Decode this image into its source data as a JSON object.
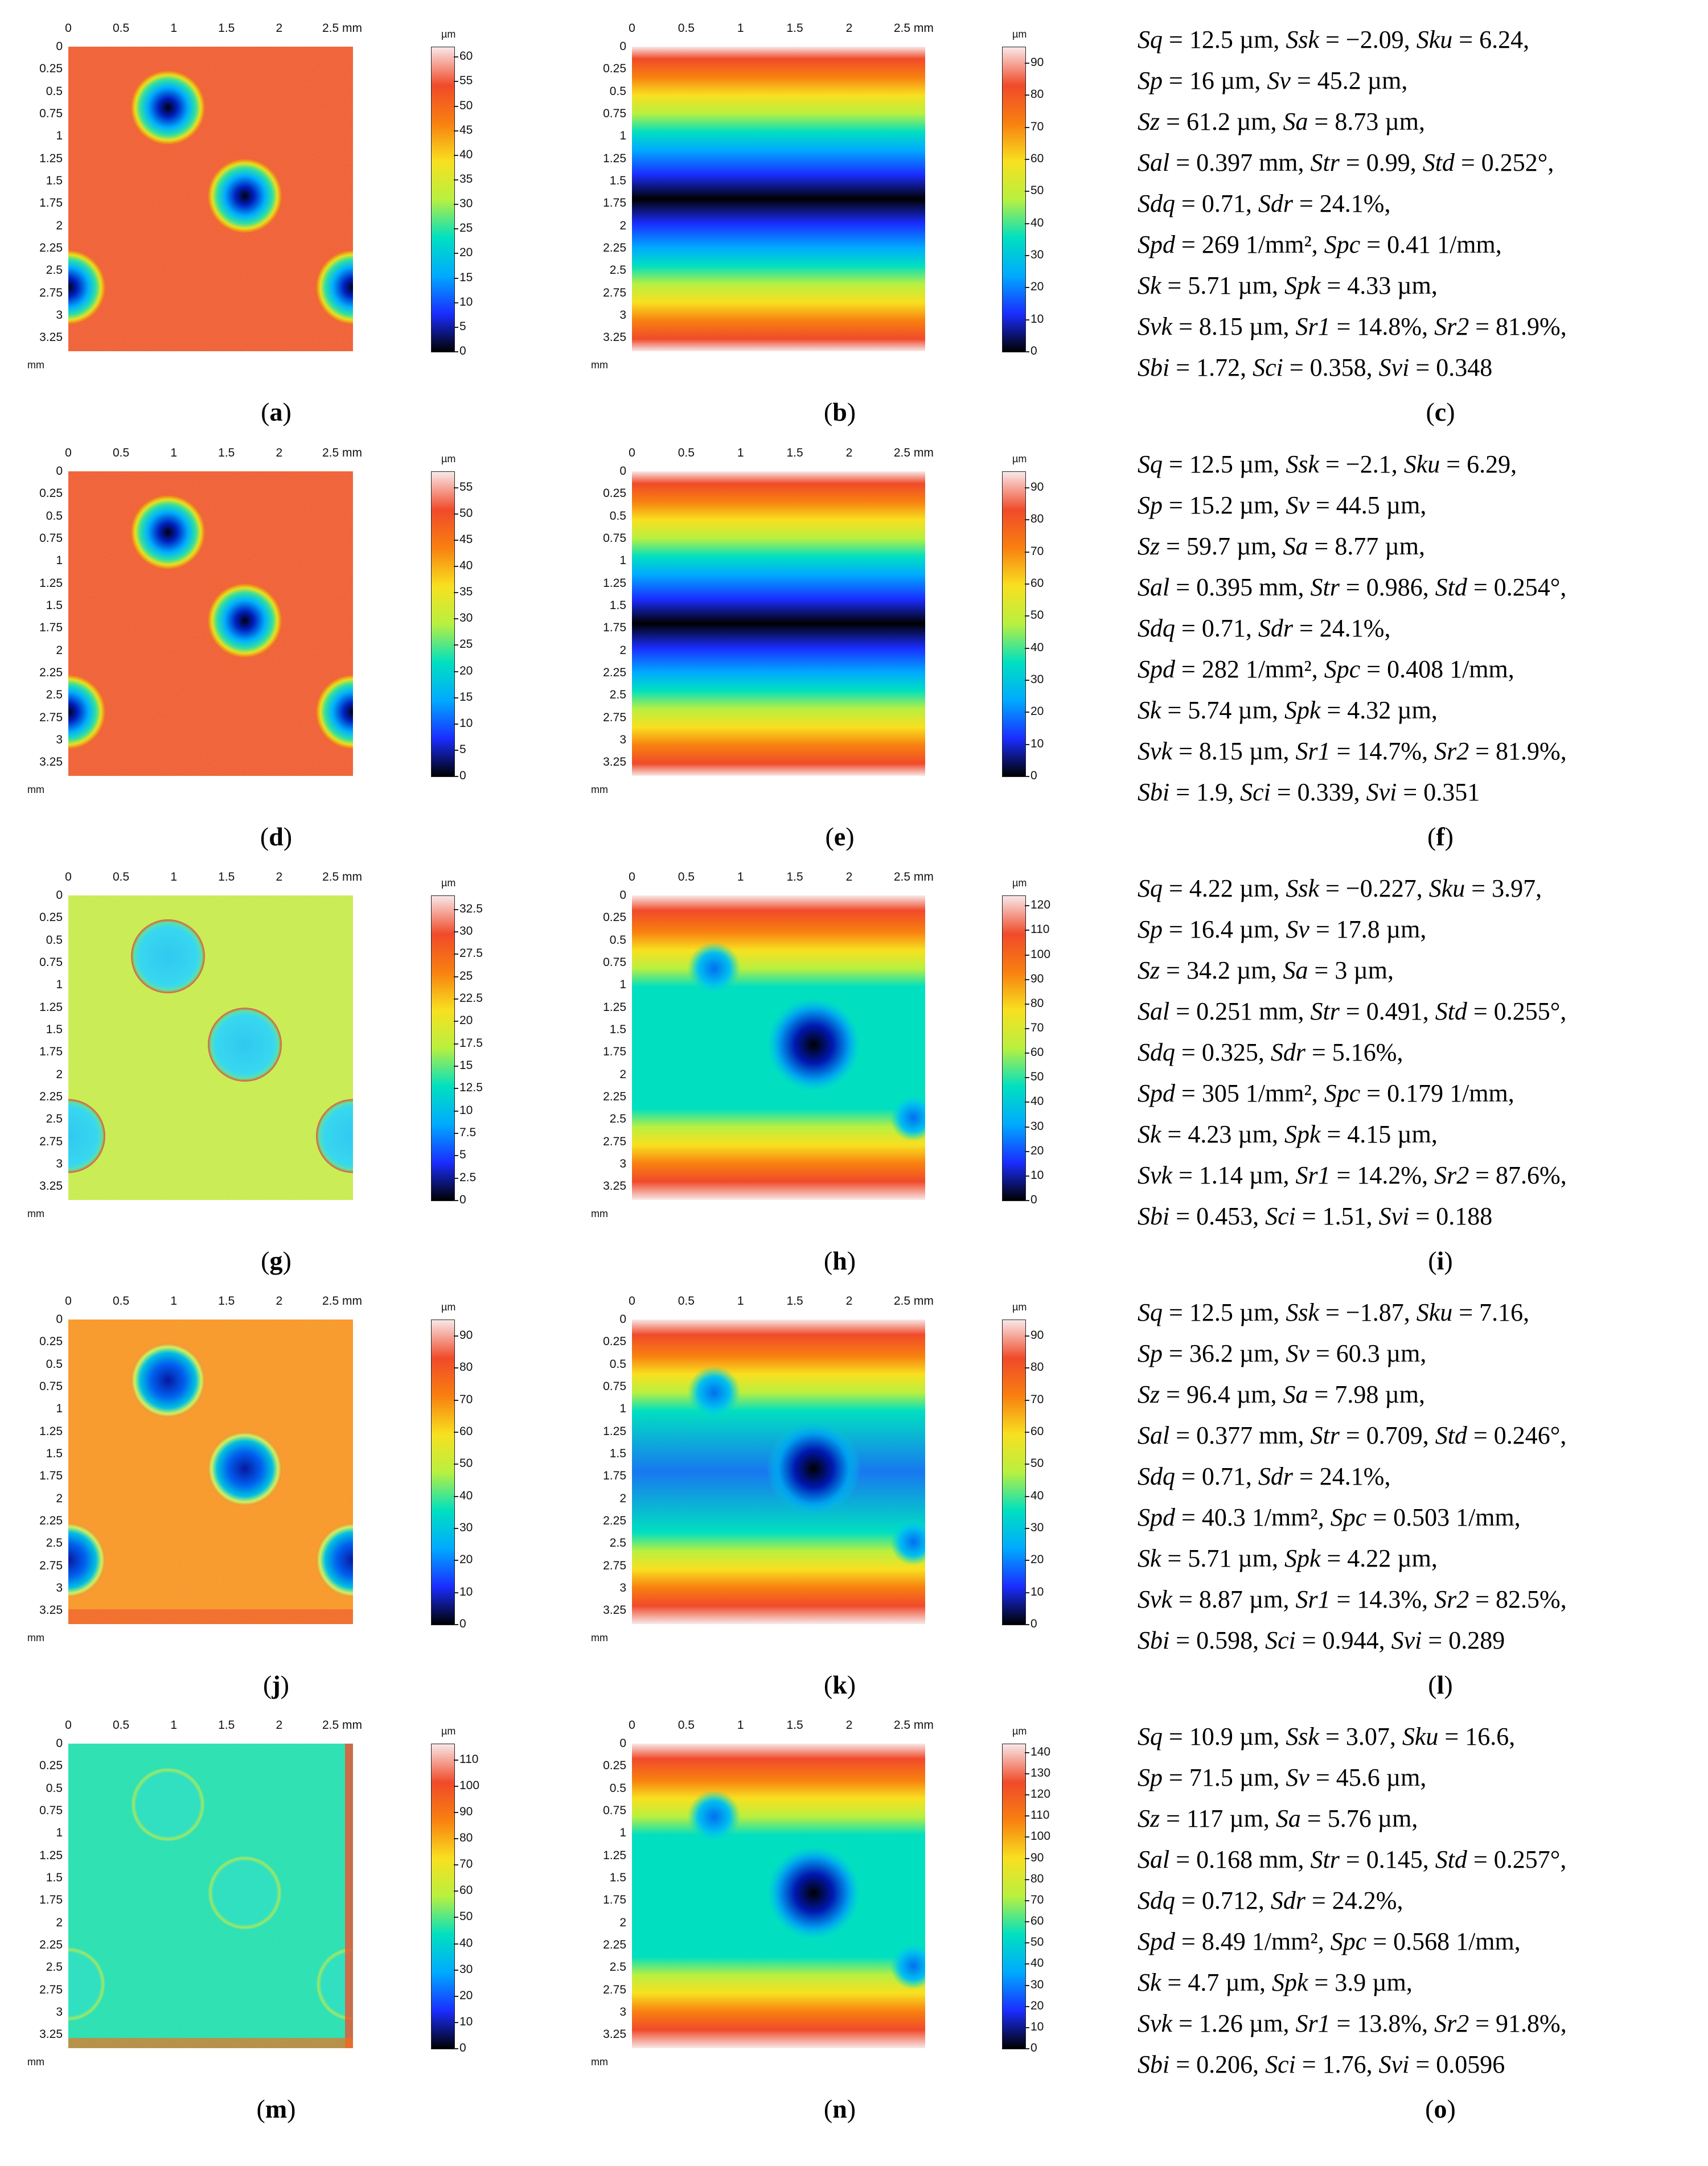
{
  "axes": {
    "x_ticks": [
      "0",
      "0.5",
      "1",
      "1.5",
      "2",
      "2.5 mm"
    ],
    "y_ticks": [
      "0",
      "0.25",
      "0.5",
      "0.75",
      "1",
      "1.25",
      "1.5",
      "1.75",
      "2",
      "2.25",
      "2.5",
      "2.75",
      "3",
      "3.25"
    ],
    "y_unit": "mm",
    "scale_unit": "µm"
  },
  "rows": [
    {
      "left": {
        "label": "a",
        "scale": [
          "60",
          "55",
          "50",
          "45",
          "40",
          "35",
          "30",
          "25",
          "20",
          "15",
          "10",
          "5",
          "0"
        ],
        "scale_max": 62
      },
      "middle": {
        "label": "b",
        "scale": [
          "90",
          "80",
          "70",
          "60",
          "50",
          "40",
          "30",
          "20",
          "10",
          "0"
        ],
        "scale_max": 95
      },
      "right": {
        "label": "c"
      },
      "params": [
        [
          [
            "Sq",
            "12.5 µm"
          ],
          [
            "Ssk",
            "−2.09"
          ],
          [
            "Sku",
            "6.24"
          ]
        ],
        [
          [
            "Sp",
            "16 µm"
          ],
          [
            "Sv",
            "45.2 µm"
          ]
        ],
        [
          [
            "Sz",
            "61.2 µm"
          ],
          [
            "Sa",
            "8.73 µm"
          ]
        ],
        [
          [
            "Sal",
            "0.397 mm"
          ],
          [
            "Str",
            "0.99"
          ],
          [
            "Std",
            "0.252°"
          ]
        ],
        [
          [
            "Sdq",
            "0.71"
          ],
          [
            "Sdr",
            "24.1%"
          ]
        ],
        [
          [
            "Spd",
            "269 1/mm²"
          ],
          [
            "Spc",
            "0.41 1/mm"
          ]
        ],
        [
          [
            "Sk",
            "5.71 µm"
          ],
          [
            "Spk",
            "4.33 µm"
          ]
        ],
        [
          [
            "Svk",
            "8.15 µm"
          ],
          [
            "Sr1",
            "14.8%"
          ],
          [
            "Sr2",
            "81.9%"
          ]
        ],
        [
          [
            "Sbi",
            "1.72"
          ],
          [
            "Sci",
            "0.358"
          ],
          [
            "Svi",
            "0.348"
          ]
        ]
      ]
    },
    {
      "left": {
        "label": "d",
        "scale": [
          "55",
          "50",
          "45",
          "40",
          "35",
          "30",
          "25",
          "20",
          "15",
          "10",
          "5",
          "0"
        ],
        "scale_max": 58
      },
      "middle": {
        "label": "e",
        "scale": [
          "90",
          "80",
          "70",
          "60",
          "50",
          "40",
          "30",
          "20",
          "10",
          "0"
        ],
        "scale_max": 95
      },
      "right": {
        "label": "f"
      },
      "params": [
        [
          [
            "Sq",
            "12.5 µm"
          ],
          [
            "Ssk",
            "−2.1"
          ],
          [
            "Sku",
            "6.29"
          ]
        ],
        [
          [
            "Sp",
            "15.2 µm"
          ],
          [
            "Sv",
            "44.5 µm"
          ]
        ],
        [
          [
            "Sz",
            "59.7 µm"
          ],
          [
            "Sa",
            "8.77 µm"
          ]
        ],
        [
          [
            "Sal",
            "0.395 mm"
          ],
          [
            "Str",
            "0.986"
          ],
          [
            "Std",
            "0.254°"
          ]
        ],
        [
          [
            "Sdq",
            "0.71"
          ],
          [
            "Sdr",
            "24.1%"
          ]
        ],
        [
          [
            "Spd",
            "282 1/mm²"
          ],
          [
            "Spc",
            "0.408 1/mm"
          ]
        ],
        [
          [
            "Sk",
            "5.74 µm"
          ],
          [
            "Spk",
            "4.32 µm"
          ]
        ],
        [
          [
            "Svk",
            "8.15 µm"
          ],
          [
            "Sr1",
            "14.7%"
          ],
          [
            "Sr2",
            "81.9%"
          ]
        ],
        [
          [
            "Sbi",
            "1.9"
          ],
          [
            "Sci",
            "0.339"
          ],
          [
            "Svi",
            "0.351"
          ]
        ]
      ]
    },
    {
      "left": {
        "label": "g",
        "scale": [
          "32.5",
          "30",
          "27.5",
          "25",
          "22.5",
          "20",
          "17.5",
          "15",
          "12.5",
          "10",
          "7.5",
          "5",
          "2.5",
          "0"
        ],
        "scale_max": 34
      },
      "middle": {
        "label": "h",
        "scale": [
          "120",
          "110",
          "100",
          "90",
          "80",
          "70",
          "60",
          "50",
          "40",
          "30",
          "20",
          "10",
          "0"
        ],
        "scale_max": 124
      },
      "right": {
        "label": "i"
      },
      "params": [
        [
          [
            "Sq",
            "4.22 µm"
          ],
          [
            "Ssk",
            "−0.227"
          ],
          [
            "Sku",
            "3.97"
          ]
        ],
        [
          [
            "Sp",
            "16.4 µm"
          ],
          [
            "Sv",
            "17.8 µm"
          ]
        ],
        [
          [
            "Sz",
            "34.2 µm"
          ],
          [
            "Sa",
            "3 µm"
          ]
        ],
        [
          [
            "Sal",
            "0.251 mm"
          ],
          [
            "Str",
            "0.491"
          ],
          [
            "Std",
            "0.255°"
          ]
        ],
        [
          [
            "Sdq",
            "0.325"
          ],
          [
            "Sdr",
            "5.16%"
          ]
        ],
        [
          [
            "Spd",
            "305 1/mm²"
          ],
          [
            "Spc",
            "0.179 1/mm"
          ]
        ],
        [
          [
            "Sk",
            "4.23 µm"
          ],
          [
            "Spk",
            "4.15 µm"
          ]
        ],
        [
          [
            "Svk",
            "1.14 µm"
          ],
          [
            "Sr1",
            "14.2%"
          ],
          [
            "Sr2",
            "87.6%"
          ]
        ],
        [
          [
            "Sbi",
            "0.453"
          ],
          [
            "Sci",
            "1.51"
          ],
          [
            "Svi",
            "0.188"
          ]
        ]
      ]
    },
    {
      "left": {
        "label": "j",
        "scale": [
          "90",
          "80",
          "70",
          "60",
          "50",
          "40",
          "30",
          "20",
          "10",
          "0"
        ],
        "scale_max": 95
      },
      "middle": {
        "label": "k",
        "scale": [
          "90",
          "80",
          "70",
          "60",
          "50",
          "40",
          "30",
          "20",
          "10",
          "0"
        ],
        "scale_max": 95
      },
      "right": {
        "label": "l"
      },
      "params": [
        [
          [
            "Sq",
            "12.5 µm"
          ],
          [
            "Ssk",
            "−1.87"
          ],
          [
            "Sku",
            "7.16"
          ]
        ],
        [
          [
            "Sp",
            "36.2 µm"
          ],
          [
            "Sv",
            "60.3 µm"
          ]
        ],
        [
          [
            "Sz",
            "96.4 µm"
          ],
          [
            "Sa",
            "7.98 µm"
          ]
        ],
        [
          [
            "Sal",
            "0.377 mm"
          ],
          [
            "Str",
            "0.709"
          ],
          [
            "Std",
            "0.246°"
          ]
        ],
        [
          [
            "Sdq",
            "0.71"
          ],
          [
            "Sdr",
            "24.1%"
          ]
        ],
        [
          [
            "Spd",
            "40.3 1/mm²"
          ],
          [
            "Spc",
            "0.503 1/mm"
          ]
        ],
        [
          [
            "Sk",
            "5.71 µm"
          ],
          [
            "Spk",
            "4.22 µm"
          ]
        ],
        [
          [
            "Svk",
            "8.87 µm"
          ],
          [
            "Sr1",
            "14.3%"
          ],
          [
            "Sr2",
            "82.5%"
          ]
        ],
        [
          [
            "Sbi",
            "0.598"
          ],
          [
            "Sci",
            "0.944"
          ],
          [
            "Svi",
            "0.289"
          ]
        ]
      ]
    },
    {
      "left": {
        "label": "m",
        "scale": [
          "110",
          "100",
          "90",
          "80",
          "70",
          "60",
          "50",
          "40",
          "30",
          "20",
          "10",
          "0"
        ],
        "scale_max": 116
      },
      "middle": {
        "label": "n",
        "scale": [
          "140",
          "130",
          "120",
          "110",
          "100",
          "90",
          "80",
          "70",
          "60",
          "50",
          "40",
          "30",
          "20",
          "10",
          "0"
        ],
        "scale_max": 144
      },
      "right": {
        "label": "o"
      },
      "params": [
        [
          [
            "Sq",
            "10.9 µm"
          ],
          [
            "Ssk",
            "3.07"
          ],
          [
            "Sku",
            "16.6"
          ]
        ],
        [
          [
            "Sp",
            "71.5 µm"
          ],
          [
            "Sv",
            "45.6 µm"
          ]
        ],
        [
          [
            "Sz",
            "117 µm"
          ],
          [
            "Sa",
            "5.76 µm"
          ]
        ],
        [
          [
            "Sal",
            "0.168 mm"
          ],
          [
            "Str",
            "0.145"
          ],
          [
            "Std",
            "0.257°"
          ]
        ],
        [
          [
            "Sdq",
            "0.712"
          ],
          [
            "Sdr",
            "24.2%"
          ]
        ],
        [
          [
            "Spd",
            "8.49 1/mm²"
          ],
          [
            "Spc",
            "0.568 1/mm"
          ]
        ],
        [
          [
            "Sk",
            "4.7 µm"
          ],
          [
            "Spk",
            "3.9 µm"
          ]
        ],
        [
          [
            "Svk",
            "1.26 µm"
          ],
          [
            "Sr1",
            "13.8%"
          ],
          [
            "Sr2",
            "91.8%"
          ]
        ],
        [
          [
            "Sbi",
            "0.206"
          ],
          [
            "Sci",
            "1.76"
          ],
          [
            "Svi",
            "0.0596"
          ]
        ]
      ]
    }
  ],
  "colormap": [
    "#000000",
    "#1a2dff",
    "#00aaff",
    "#00e0c0",
    "#b8f040",
    "#f8e020",
    "#f88010",
    "#f04a2a",
    "#f8e8e8"
  ]
}
